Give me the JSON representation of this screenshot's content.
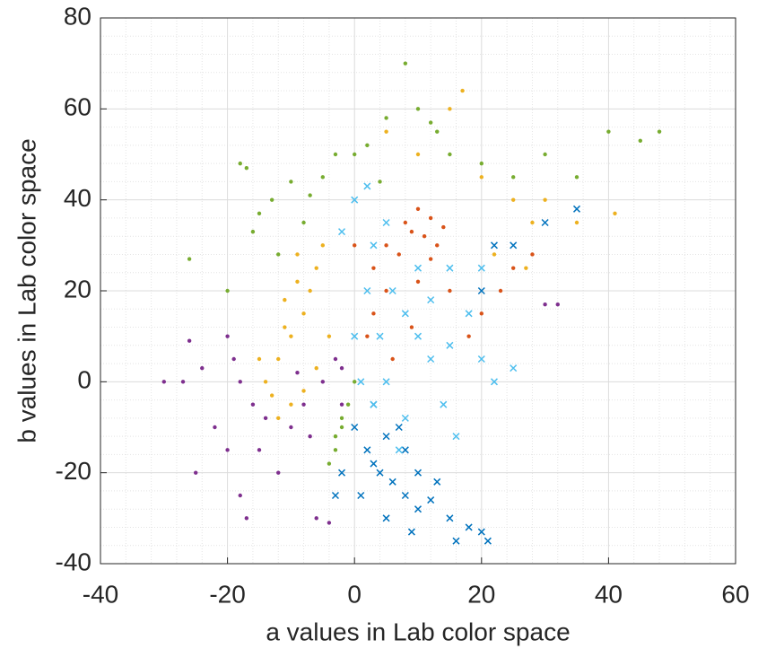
{
  "chart_data": {
    "type": "scatter",
    "xlabel": "a values in Lab color space",
    "ylabel": "b values in Lab color space",
    "xlim": [
      -40,
      60
    ],
    "xticks": [
      -40,
      -20,
      0,
      20,
      40,
      60
    ],
    "ylim": [
      -40,
      80
    ],
    "yticks": [
      -40,
      -20,
      0,
      20,
      40,
      60,
      80
    ],
    "grid": true,
    "minor_grid": true,
    "series": [
      {
        "color": "#77AC30",
        "marker": "dot",
        "x": [
          -18,
          -17,
          -15,
          -13,
          -10,
          -8,
          -12,
          -26,
          -20,
          -5,
          -3,
          0,
          2,
          5,
          8,
          10,
          13,
          15,
          20,
          25,
          30,
          35,
          40,
          45,
          48,
          -3,
          -4,
          -2,
          -1,
          0,
          -3,
          -2,
          -16,
          -7,
          4,
          12
        ],
        "y": [
          48,
          47,
          37,
          40,
          44,
          35,
          28,
          27,
          20,
          45,
          50,
          50,
          52,
          58,
          70,
          60,
          55,
          50,
          48,
          45,
          50,
          45,
          55,
          53,
          55,
          -15,
          -18,
          -10,
          -5,
          0,
          -12,
          -8,
          33,
          41,
          44,
          57
        ]
      },
      {
        "color": "#EDB120",
        "marker": "dot",
        "x": [
          -10,
          -12,
          -8,
          -6,
          -14,
          -10,
          -7,
          -9,
          -5,
          -12,
          -15,
          -4,
          -8,
          5,
          10,
          15,
          17,
          20,
          25,
          28,
          30,
          35,
          41,
          22,
          27,
          -11,
          -13,
          -6,
          -9,
          -11
        ],
        "y": [
          10,
          5,
          15,
          25,
          0,
          -5,
          20,
          28,
          30,
          -8,
          5,
          10,
          -2,
          55,
          50,
          60,
          64,
          45,
          40,
          35,
          40,
          35,
          37,
          28,
          25,
          18,
          -3,
          3,
          22,
          12
        ]
      },
      {
        "color": "#D95319",
        "marker": "dot",
        "x": [
          5,
          8,
          10,
          12,
          13,
          7,
          3,
          10,
          15,
          18,
          20,
          23,
          25,
          28,
          3,
          6,
          9,
          0,
          11,
          14,
          5,
          2,
          9,
          12
        ],
        "y": [
          30,
          35,
          38,
          36,
          30,
          28,
          25,
          22,
          20,
          10,
          15,
          20,
          25,
          28,
          15,
          5,
          12,
          30,
          32,
          34,
          20,
          10,
          33,
          27
        ]
      },
      {
        "color": "#7E2F8E",
        "marker": "dot",
        "x": [
          -20,
          -18,
          -16,
          -22,
          -25,
          -18,
          -17,
          -30,
          -27,
          -15,
          -10,
          -8,
          -5,
          -3,
          -2,
          -12,
          -6,
          -4,
          -20,
          -24,
          -9,
          -14,
          -2,
          30,
          32,
          -26,
          -7,
          -19
        ],
        "y": [
          10,
          0,
          -5,
          -10,
          -20,
          -25,
          -30,
          0,
          0,
          -15,
          -10,
          -5,
          0,
          5,
          -5,
          -20,
          -30,
          -31,
          -15,
          3,
          2,
          -8,
          3,
          17,
          17,
          9,
          -12,
          5
        ]
      },
      {
        "color": "#0072BD",
        "marker": "x",
        "x": [
          0,
          2,
          4,
          6,
          8,
          10,
          12,
          15,
          18,
          20,
          21,
          3,
          5,
          8,
          10,
          13,
          1,
          5,
          9,
          16,
          -2,
          -3,
          20,
          25,
          30,
          35,
          22,
          7,
          3
        ],
        "y": [
          -10,
          -15,
          -20,
          -22,
          -25,
          -28,
          -26,
          -30,
          -32,
          -33,
          -35,
          -5,
          -12,
          -15,
          -20,
          -22,
          -25,
          -30,
          -33,
          -35,
          -20,
          -25,
          20,
          30,
          35,
          38,
          30,
          -10,
          -18
        ]
      },
      {
        "color": "#4DBEEE",
        "marker": "x",
        "x": [
          0,
          2,
          5,
          3,
          6,
          8,
          10,
          12,
          15,
          18,
          20,
          22,
          25,
          5,
          3,
          8,
          14,
          16,
          2,
          0,
          10,
          15,
          20,
          7,
          4,
          1,
          -2,
          12
        ],
        "y": [
          40,
          43,
          35,
          30,
          20,
          15,
          10,
          5,
          8,
          15,
          5,
          0,
          3,
          0,
          -5,
          -8,
          -5,
          -12,
          20,
          10,
          25,
          25,
          25,
          -15,
          10,
          0,
          33,
          18
        ]
      }
    ]
  }
}
